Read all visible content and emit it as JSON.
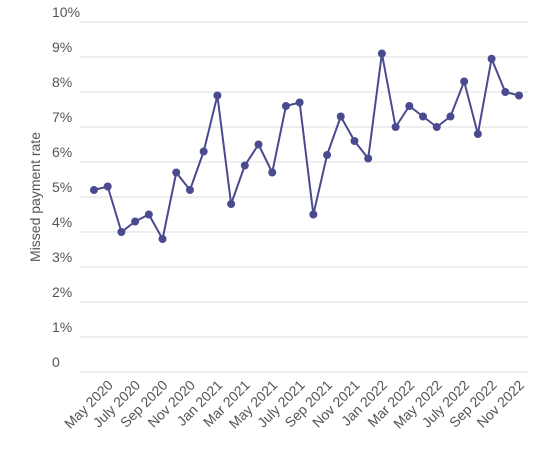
{
  "chart_data": {
    "type": "line",
    "ylabel": "Missed payment rate",
    "xlabel": "",
    "title": "",
    "ylim": [
      0,
      10
    ],
    "yticks": [
      "0",
      "1%",
      "2%",
      "3%",
      "4%",
      "5%",
      "6%",
      "7%",
      "8%",
      "9%",
      "10%"
    ],
    "xtick_labels": [
      "May 2020",
      "July 2020",
      "Sep 2020",
      "Nov 2020",
      "Jan 2021",
      "Mar 2021",
      "May 2021",
      "July 2021",
      "Sep 2021",
      "Nov 2021",
      "Jan 2022",
      "Mar 2022",
      "May 2022",
      "July 2022",
      "Sep 2022",
      "Nov 2022"
    ],
    "x": [
      "Apr 2020",
      "May 2020",
      "Jun 2020",
      "Jul 2020",
      "Aug 2020",
      "Sep 2020",
      "Oct 2020",
      "Nov 2020",
      "Dec 2020",
      "Jan 2021",
      "Feb 2021",
      "Mar 2021",
      "Apr 2021",
      "May 2021",
      "Jun 2021",
      "Jul 2021",
      "Aug 2021",
      "Sep 2021",
      "Oct 2021",
      "Nov 2021",
      "Dec 2021",
      "Jan 2022",
      "Feb 2022",
      "Mar 2022",
      "Apr 2022",
      "May 2022",
      "Jun 2022",
      "Jul 2022",
      "Aug 2022",
      "Sep 2022",
      "Oct 2022",
      "Nov 2022"
    ],
    "series": [
      {
        "values": [
          5.2,
          5.3,
          4.0,
          4.3,
          4.5,
          3.8,
          5.7,
          5.2,
          6.3,
          7.9,
          4.8,
          5.9,
          6.5,
          5.7,
          7.6,
          7.7,
          4.5,
          6.2,
          7.3,
          6.6,
          6.1,
          9.1,
          7.0,
          7.6,
          7.3,
          7.0,
          7.3,
          8.3,
          6.8,
          8.95,
          8.0,
          7.9
        ]
      }
    ],
    "grid": true,
    "colors": {
      "series": "#4a4a8f",
      "grid": "#dddddd",
      "text": "#555555"
    }
  }
}
